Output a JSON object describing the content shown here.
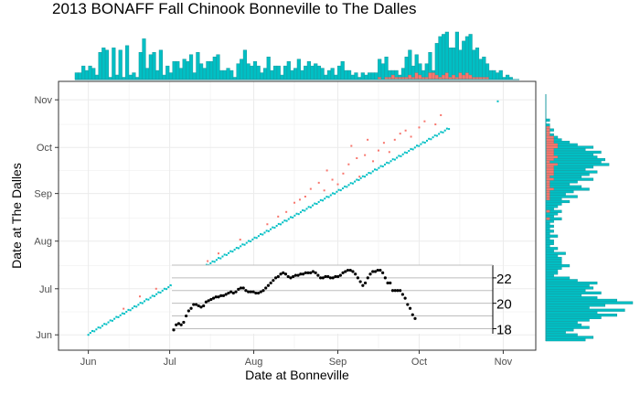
{
  "title": "2013 BONAFF Fall Chinook Bonneville to The Dalles",
  "chart_data": {
    "type": "scatter",
    "title": "2013 BONAFF Fall Chinook Bonneville to The Dalles",
    "xlabel": "Date at Bonneville",
    "ylabel": "Date at The Dalles",
    "x_ticks": [
      "Jun",
      "Jul",
      "Aug",
      "Sep",
      "Oct",
      "Nov"
    ],
    "y_ticks": [
      "Jun",
      "Jul",
      "Aug",
      "Sep",
      "Oct",
      "Nov"
    ],
    "xlim": [
      "2013-05-21",
      "2013-11-13"
    ],
    "ylim": [
      "2013-05-22",
      "2013-11-13"
    ],
    "grid": true,
    "colors": {
      "group_a": "#00bfc4",
      "group_b": "#f8766d",
      "temperature": "#000000",
      "background": "#ffffff",
      "grid": "#ebebeb"
    },
    "scatter": {
      "group_a_line": [
        {
          "x": "2013-06-01",
          "y": "2013-06-01"
        },
        {
          "x": "2013-07-01",
          "y": "2013-07-02"
        },
        {
          "x": "2013-08-01",
          "y": "2013-08-02"
        },
        {
          "x": "2013-09-01",
          "y": "2013-09-02"
        },
        {
          "x": "2013-10-01",
          "y": "2013-10-02"
        },
        {
          "x": "2013-10-12",
          "y": "2013-10-13"
        }
      ],
      "group_a_extra": [
        {
          "x": "2013-10-30",
          "y": "2013-10-31"
        }
      ],
      "group_b": [
        {
          "x": "2013-06-20",
          "y": "2013-06-26"
        },
        {
          "x": "2013-06-26",
          "y": "2013-07-01"
        },
        {
          "x": "2013-07-08",
          "y": "2013-07-15"
        },
        {
          "x": "2013-07-19",
          "y": "2013-07-24"
        },
        {
          "x": "2013-07-27",
          "y": "2013-08-02"
        },
        {
          "x": "2013-08-06",
          "y": "2013-08-12"
        },
        {
          "x": "2013-08-13",
          "y": "2013-08-20"
        },
        {
          "x": "2013-08-16",
          "y": "2013-08-26"
        },
        {
          "x": "2013-08-18",
          "y": "2013-08-28"
        },
        {
          "x": "2013-08-20",
          "y": "2013-08-30"
        },
        {
          "x": "2013-08-22",
          "y": "2013-09-04"
        },
        {
          "x": "2013-08-25",
          "y": "2013-09-08"
        },
        {
          "x": "2013-08-27",
          "y": "2013-09-03"
        },
        {
          "x": "2013-08-28",
          "y": "2013-09-16"
        },
        {
          "x": "2013-08-30",
          "y": "2013-09-10"
        },
        {
          "x": "2013-09-01",
          "y": "2013-09-07"
        },
        {
          "x": "2013-09-03",
          "y": "2013-09-14"
        },
        {
          "x": "2013-09-05",
          "y": "2013-09-20"
        },
        {
          "x": "2013-09-06",
          "y": "2013-10-02"
        },
        {
          "x": "2013-09-08",
          "y": "2013-09-24"
        },
        {
          "x": "2013-09-09",
          "y": "2013-09-12"
        },
        {
          "x": "2013-09-11",
          "y": "2013-09-26"
        },
        {
          "x": "2013-09-12",
          "y": "2013-10-06"
        },
        {
          "x": "2013-09-14",
          "y": "2013-09-22"
        },
        {
          "x": "2013-09-16",
          "y": "2013-09-29"
        },
        {
          "x": "2013-09-18",
          "y": "2013-10-04"
        },
        {
          "x": "2013-09-20",
          "y": "2013-09-28"
        },
        {
          "x": "2013-09-22",
          "y": "2013-10-06"
        },
        {
          "x": "2013-09-24",
          "y": "2013-10-10"
        },
        {
          "x": "2013-09-26",
          "y": "2013-10-12"
        },
        {
          "x": "2013-09-28",
          "y": "2013-10-08"
        },
        {
          "x": "2013-10-01",
          "y": "2013-10-14"
        },
        {
          "x": "2013-10-03",
          "y": "2013-10-18"
        },
        {
          "x": "2013-10-07",
          "y": "2013-10-16"
        },
        {
          "x": "2013-10-09",
          "y": "2013-10-22"
        },
        {
          "x": "2013-08-10",
          "y": "2013-08-17"
        },
        {
          "x": "2013-07-15",
          "y": "2013-07-19"
        },
        {
          "x": "2013-06-14",
          "y": "2013-06-18"
        }
      ]
    },
    "inset_temperature": {
      "y_ticks": [
        18,
        20,
        22
      ],
      "ylim": [
        17.6,
        23.0
      ],
      "values": [
        17.9,
        18.3,
        18.4,
        18.3,
        18.5,
        19.0,
        19.4,
        19.6,
        19.9,
        19.9,
        19.8,
        19.7,
        19.8,
        20.1,
        20.2,
        20.3,
        20.4,
        20.5,
        20.5,
        20.6,
        20.6,
        20.7,
        20.8,
        20.9,
        20.8,
        20.9,
        21.1,
        21.2,
        21.2,
        21.0,
        20.9,
        20.9,
        20.9,
        20.8,
        20.8,
        20.9,
        21.0,
        21.2,
        21.4,
        21.6,
        21.8,
        22.0,
        22.1,
        22.3,
        22.4,
        22.3,
        22.1,
        22.0,
        22.1,
        22.2,
        22.2,
        22.3,
        22.3,
        22.4,
        22.4,
        22.4,
        22.5,
        22.4,
        22.2,
        22.0,
        22.0,
        22.1,
        22.1,
        22.0,
        22.0,
        22.1,
        22.1,
        22.2,
        22.4,
        22.5,
        22.6,
        22.6,
        22.5,
        22.3,
        22.0,
        21.7,
        21.4,
        21.6,
        22.0,
        22.3,
        22.5,
        22.5,
        22.6,
        22.6,
        22.4,
        22.0,
        21.6,
        21.6,
        21.0,
        21.0,
        21.0,
        21.0,
        20.7,
        20.4,
        19.9,
        19.6,
        19.1,
        18.8
      ]
    },
    "marginal_top": {
      "total": [
        3,
        3,
        6,
        4,
        6,
        5,
        2,
        12,
        14,
        13,
        1,
        14,
        2,
        13,
        1,
        15,
        2,
        3,
        1,
        12,
        18,
        5,
        11,
        12,
        4,
        13,
        2,
        6,
        3,
        8,
        8,
        5,
        9,
        8,
        11,
        3,
        12,
        7,
        5,
        8,
        8,
        10,
        11,
        4,
        4,
        5,
        4,
        1,
        7,
        9,
        13,
        7,
        6,
        8,
        6,
        3,
        5,
        10,
        4,
        6,
        6,
        2,
        6,
        8,
        4,
        5,
        9,
        4,
        6,
        8,
        6,
        7,
        6,
        5,
        2,
        4,
        5,
        2,
        6,
        8,
        4,
        4,
        2,
        3,
        1,
        3,
        2,
        3,
        3,
        3,
        9,
        7,
        10,
        4,
        4,
        4,
        2,
        5,
        10,
        13,
        6,
        11,
        7,
        4,
        7,
        12,
        4,
        16,
        19,
        20,
        21,
        14,
        14,
        21,
        13,
        17,
        19,
        20,
        13,
        14,
        9,
        10,
        7,
        4,
        4,
        3,
        4,
        1,
        2,
        1,
        0,
        0
      ],
      "group_b": [
        0,
        0,
        0,
        0,
        0,
        0,
        0,
        0,
        0,
        0,
        0,
        0,
        0,
        0,
        0,
        0,
        0,
        0,
        0,
        0,
        0,
        0,
        0,
        0,
        0,
        0,
        0,
        0,
        0,
        0,
        0,
        0,
        0,
        0,
        0,
        0,
        0,
        0,
        0,
        0,
        0,
        0,
        0,
        0,
        0,
        0,
        0,
        0,
        0,
        0,
        0,
        0,
        0,
        0,
        0,
        0,
        0,
        0,
        0,
        0,
        0,
        0,
        0,
        0,
        0,
        0,
        0,
        0,
        0,
        0,
        0,
        0,
        0,
        0,
        0,
        0,
        0,
        0,
        0,
        0,
        0,
        0,
        0,
        0,
        0,
        0,
        0,
        0,
        0,
        0,
        1,
        0,
        1,
        1,
        2,
        1,
        1,
        1,
        1,
        2,
        1,
        3,
        2,
        1,
        1,
        3,
        3,
        2,
        1,
        2,
        3,
        1,
        2,
        1,
        3,
        2,
        3,
        2,
        1,
        1,
        1,
        1,
        1,
        0,
        0,
        0,
        0,
        0,
        0,
        0,
        0,
        0
      ]
    },
    "marginal_right": {
      "total": [
        0,
        0,
        0,
        0,
        0,
        0,
        0,
        0,
        0,
        0,
        1,
        0,
        1,
        1,
        2,
        1,
        2,
        3,
        4,
        6,
        8,
        12,
        10,
        14,
        12,
        13,
        15,
        14,
        16,
        12,
        10,
        13,
        11,
        9,
        12,
        8,
        6,
        9,
        11,
        7,
        5,
        8,
        4,
        6,
        4,
        3,
        2,
        4,
        3,
        2,
        4,
        2,
        1,
        2,
        1,
        2,
        1,
        3,
        1,
        2,
        2,
        1,
        3,
        2,
        5,
        3,
        4,
        4,
        4,
        6,
        4,
        3,
        3,
        2,
        6,
        8,
        13,
        11,
        12,
        10,
        14,
        9,
        13,
        18,
        22,
        15,
        11,
        20,
        13,
        18,
        14,
        11,
        8,
        9,
        11,
        7,
        5,
        8,
        12,
        10
      ],
      "group_b": [
        0,
        0,
        0,
        0,
        0,
        0,
        0,
        0,
        0,
        0,
        0,
        0,
        0,
        1,
        1,
        1,
        1,
        2,
        2,
        2,
        3,
        3,
        2,
        2,
        2,
        3,
        2,
        1,
        3,
        2,
        2,
        2,
        2,
        1,
        2,
        1,
        1,
        1,
        2,
        1,
        1,
        1,
        1,
        0,
        0,
        0,
        0,
        1,
        0,
        0,
        1,
        0,
        0,
        0,
        0,
        0,
        0,
        0,
        0,
        0,
        0,
        0,
        0,
        0,
        0,
        0,
        0,
        0,
        0,
        0,
        0,
        0,
        0,
        0,
        0,
        0,
        0,
        0,
        0,
        0,
        0,
        0,
        0,
        0,
        0,
        0,
        0,
        0,
        0,
        0,
        0,
        0,
        0,
        0,
        0,
        0,
        0,
        0,
        0,
        0
      ]
    }
  }
}
